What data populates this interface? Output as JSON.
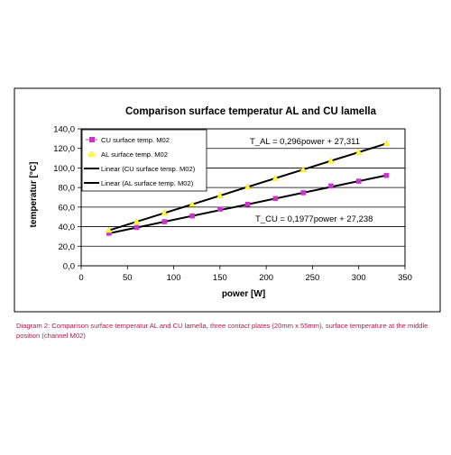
{
  "caption": "Diagram 2: Comparison surface temperatur AL and CU lamella, three contact plates (20mm x 55mm), surface temperature  at the middle position (channel M02)",
  "chart_data": {
    "type": "line",
    "title": "Comparison surface temperatur AL and CU lamella",
    "xlabel": "power [W]",
    "ylabel": "temperatur [°C]",
    "xlim": [
      0,
      350
    ],
    "ylim": [
      0,
      140
    ],
    "x_ticks": [
      "0",
      "50",
      "100",
      "150",
      "200",
      "250",
      "300",
      "350"
    ],
    "y_ticks": [
      "0,0",
      "20,0",
      "40,0",
      "60,0",
      "80,0",
      "100,0",
      "120,0",
      "140,0"
    ],
    "grid": "horizontal",
    "legend_position": "top-left",
    "series": [
      {
        "name": "CU surface temp. M02",
        "color": "#cc33cc",
        "marker": "square",
        "points": [
          [
            30,
            33.3
          ],
          [
            60,
            39.2
          ],
          [
            90,
            45.1
          ],
          [
            120,
            51.0
          ],
          [
            150,
            57.9
          ],
          [
            180,
            62.9
          ],
          [
            210,
            68.8
          ],
          [
            240,
            74.7
          ],
          [
            270,
            81.6
          ],
          [
            300,
            86.5
          ],
          [
            330,
            92.4
          ]
        ]
      },
      {
        "name": "AL surface temp. M02",
        "color": "#ffff33",
        "marker": "triangle",
        "points": [
          [
            30,
            36.2
          ],
          [
            60,
            45.1
          ],
          [
            90,
            54.0
          ],
          [
            120,
            62.8
          ],
          [
            150,
            71.7
          ],
          [
            180,
            80.6
          ],
          [
            210,
            89.4
          ],
          [
            240,
            98.3
          ],
          [
            270,
            107.2
          ],
          [
            300,
            116.1
          ],
          [
            330,
            125.0
          ]
        ]
      },
      {
        "name": "Linear (CU surface temp. M02)",
        "color": "#000000",
        "type": "trendline",
        "slope": 0.1977,
        "intercept": 27.238,
        "x_range": [
          30,
          330
        ]
      },
      {
        "name": "Linear (AL surface temp. M02)",
        "color": "#000000",
        "type": "trendline",
        "slope": 0.296,
        "intercept": 27.311,
        "x_range": [
          30,
          330
        ]
      }
    ],
    "annotations": [
      {
        "text": "T_AL = 0,296power + 27,311",
        "x": 302,
        "y": 132
      },
      {
        "text": "T_CU = 0,1977power + 27,238",
        "x": 302,
        "y": 75
      }
    ]
  }
}
